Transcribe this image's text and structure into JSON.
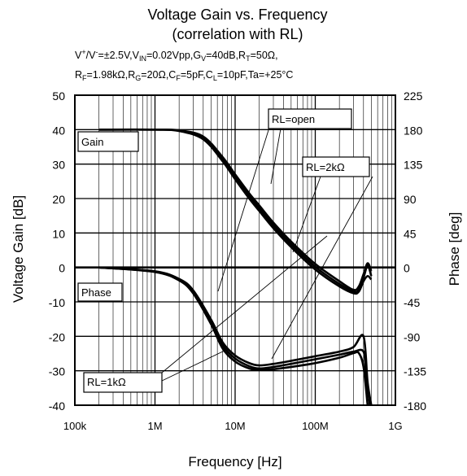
{
  "chart_data": {
    "type": "line",
    "title": "Voltage Gain vs. Frequency",
    "subtitle": "(correlation with RL)",
    "conditions_line1": "V⁺/V⁻=±2.5V,V_IN=0.02Vpp,G_V=40dB,R_T=50Ω,",
    "conditions_line2": "R_F=1.98kΩ,R_G=20Ω,C_F=5pF,C_L=10pF,Ta=+25°C",
    "xlabel": "Frequency [Hz]",
    "ylabel_left": "Voltage Gain [dB]",
    "ylabel_right": "Phase [deg]",
    "x_scale": "log",
    "xlim": [
      100000,
      1000000000
    ],
    "ylim_left": [
      -40,
      50
    ],
    "ylim_right": [
      -180,
      225
    ],
    "x_ticks": [
      100000,
      1000000,
      10000000,
      100000000,
      1000000000
    ],
    "x_tick_labels": [
      "100k",
      "1M",
      "10M",
      "100M",
      "1G"
    ],
    "y_left_ticks": [
      50,
      40,
      30,
      20,
      10,
      0,
      -10,
      -20,
      -30,
      -40
    ],
    "y_right_ticks": [
      225,
      180,
      135,
      90,
      45,
      0,
      -45,
      -90,
      -135,
      -180
    ],
    "grid": true,
    "series": [
      {
        "name": "RL=open",
        "group": "Gain",
        "axis": "left",
        "x": [
          200000,
          1000000,
          2000000,
          4000000,
          7000000,
          10000000,
          15000000,
          20000000,
          30000000,
          50000000,
          100000000,
          200000000,
          300000000,
          350000000,
          400000000,
          450000000,
          500000000
        ],
        "y": [
          40,
          40,
          39.8,
          38,
          32,
          27,
          21.5,
          18,
          13,
          7.5,
          1,
          -4,
          -6.5,
          -5.5,
          -2,
          1.2,
          -1
        ]
      },
      {
        "name": "RL=2kΩ",
        "group": "Gain",
        "axis": "left",
        "x": [
          200000,
          1000000,
          2000000,
          4000000,
          7000000,
          10000000,
          15000000,
          20000000,
          30000000,
          50000000,
          100000000,
          200000000,
          300000000,
          350000000,
          400000000,
          450000000,
          500000000
        ],
        "y": [
          40,
          40,
          39.7,
          37.6,
          31.4,
          26.3,
          20.8,
          17.2,
          12.2,
          6.7,
          0.2,
          -4.8,
          -7,
          -6.5,
          -3,
          0.5,
          -2.5
        ]
      },
      {
        "name": "RL=1kΩ",
        "group": "Gain",
        "axis": "left",
        "x": [
          200000,
          1000000,
          2000000,
          4000000,
          7000000,
          10000000,
          15000000,
          20000000,
          30000000,
          50000000,
          100000000,
          200000000,
          300000000,
          350000000,
          400000000,
          450000000,
          500000000
        ],
        "y": [
          40,
          40,
          39.6,
          37.2,
          30.8,
          25.6,
          20,
          16.4,
          11.4,
          5.9,
          -0.6,
          -5.5,
          -7.5,
          -7,
          -4,
          -2.5,
          -3.5
        ]
      },
      {
        "name": "RL=open",
        "group": "Phase",
        "axis": "right",
        "x": [
          200000,
          1000000,
          2000000,
          3000000,
          5000000,
          7000000,
          10000000,
          15000000,
          20000000,
          30000000,
          50000000,
          100000000,
          200000000,
          300000000,
          400000000,
          450000000,
          500000000
        ],
        "y": [
          0,
          -5,
          -15,
          -30,
          -68,
          -98,
          -115,
          -125,
          -128,
          -126,
          -122,
          -116,
          -110,
          -104,
          -90,
          -150,
          -180
        ]
      },
      {
        "name": "RL=2kΩ",
        "group": "Phase",
        "axis": "right",
        "x": [
          200000,
          1000000,
          2000000,
          3000000,
          5000000,
          7000000,
          10000000,
          15000000,
          20000000,
          30000000,
          50000000,
          100000000,
          200000000,
          300000000,
          400000000,
          430000000,
          480000000
        ],
        "y": [
          0,
          -5.5,
          -16,
          -32,
          -71,
          -102,
          -119,
          -129,
          -132,
          -130,
          -126,
          -120,
          -114,
          -110,
          -110,
          -140,
          -180
        ]
      },
      {
        "name": "RL=1kΩ",
        "group": "Phase",
        "axis": "right",
        "x": [
          200000,
          1000000,
          2000000,
          3000000,
          5000000,
          7000000,
          10000000,
          15000000,
          20000000,
          30000000,
          50000000,
          100000000,
          200000000,
          300000000,
          350000000,
          400000000,
          450000000
        ],
        "y": [
          0,
          -6,
          -17,
          -34,
          -74,
          -106,
          -123,
          -132,
          -134,
          -133,
          -130,
          -125,
          -118,
          -112,
          -112,
          -130,
          -180
        ]
      }
    ],
    "annotations": {
      "gain_label": "Gain",
      "phase_label": "Phase",
      "rl_open": "RL=open",
      "rl_2k": "RL=2kΩ",
      "rl_1k": "RL=1kΩ"
    },
    "colors": {
      "curve": "#000000",
      "grid": "#000000",
      "background": "#ffffff"
    }
  }
}
